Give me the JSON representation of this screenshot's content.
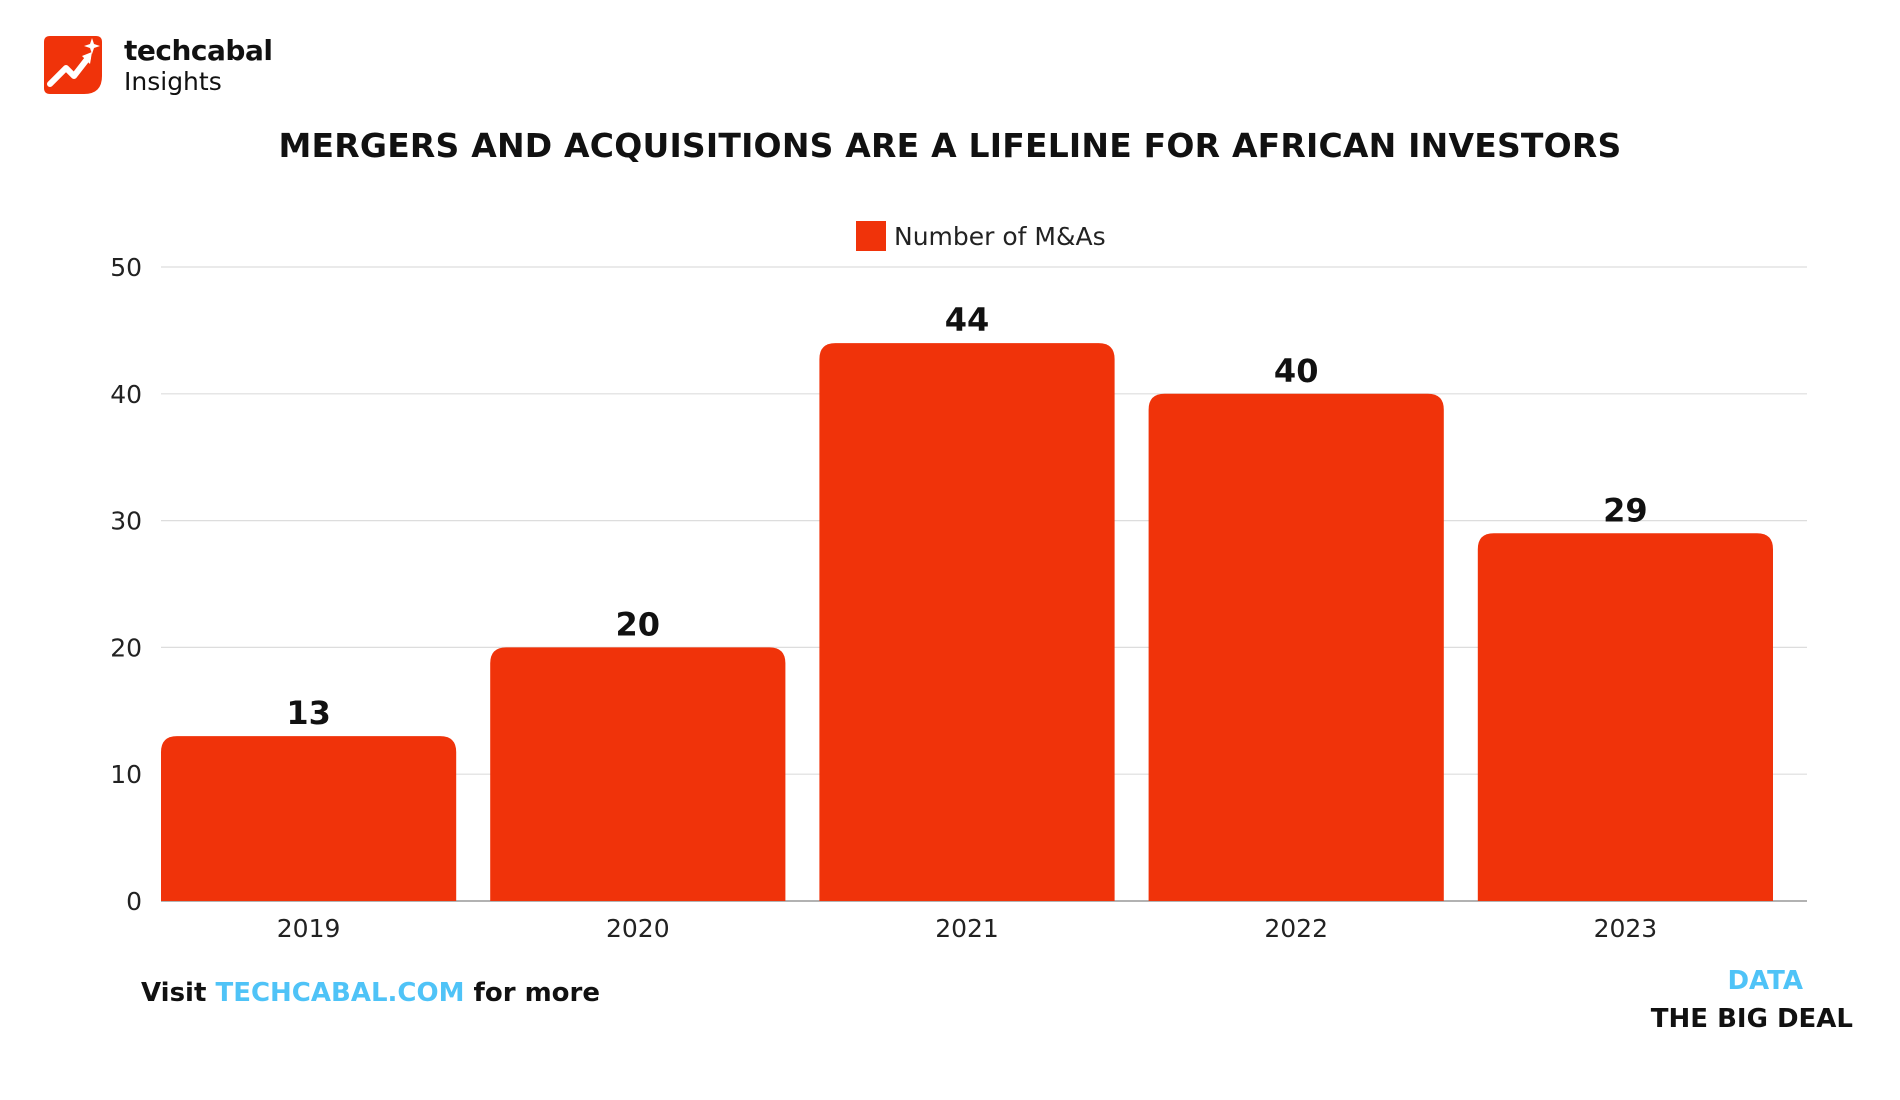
{
  "brand": {
    "name": "techcabal",
    "subtitle": "Insights",
    "logo_icon": "trend-arrow-sparkle-icon",
    "logo_color": "#f0330a"
  },
  "footer": {
    "visit_prefix": "Visit",
    "visit_link": "TECHCABAL.COM",
    "visit_suffix": "for more",
    "data_tag": "DATA",
    "series_tag": "THE BIG DEAL",
    "accent_color": "#4fc3f7"
  },
  "chart_data": {
    "type": "bar",
    "title": "MERGERS AND ACQUISITIONS ARE A LIFELINE FOR AFRICAN INVESTORS",
    "categories": [
      "2019",
      "2020",
      "2021",
      "2022",
      "2023"
    ],
    "series": [
      {
        "name": "Number of M&As",
        "values": [
          13,
          20,
          44,
          40,
          29
        ],
        "color": "#f0330a"
      }
    ],
    "xlabel": "",
    "ylabel": "",
    "ylim": [
      0,
      50
    ],
    "yticks": [
      "0",
      "10",
      "20",
      "30",
      "40",
      "50"
    ],
    "grid": true,
    "legend": "top-center",
    "data_labels": true
  }
}
